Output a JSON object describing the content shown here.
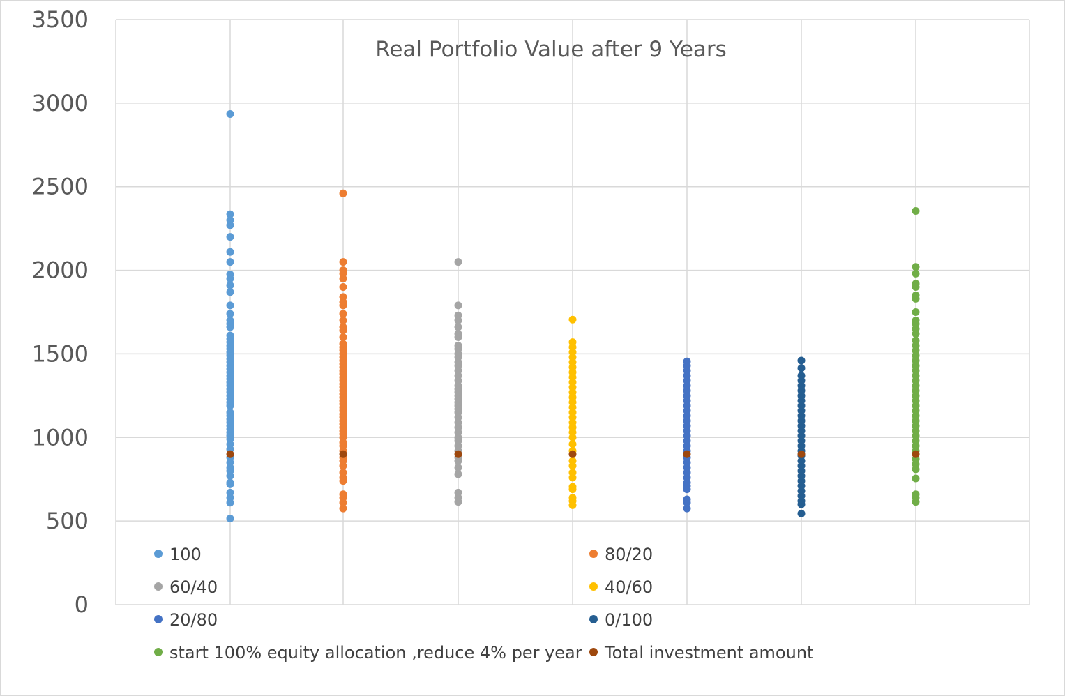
{
  "chart_data": {
    "type": "scatter",
    "title": "Real Portfolio Value after 9 Years",
    "xlabel": "",
    "ylabel": "",
    "ylim": [
      0,
      3500
    ],
    "y_ticks": [
      "0",
      "500",
      "1000",
      "1500",
      "2000",
      "2500",
      "3000",
      "3500"
    ],
    "grid": true,
    "legend_position": "bottom",
    "series": [
      {
        "name": "100",
        "color": "#5B9BD5",
        "x": 1,
        "values": [
          515,
          610,
          640,
          670,
          720,
          730,
          770,
          800,
          820,
          850,
          880,
          930,
          960,
          990,
          1010,
          1030,
          1050,
          1070,
          1090,
          1110,
          1130,
          1150,
          1190,
          1210,
          1230,
          1250,
          1270,
          1290,
          1310,
          1330,
          1350,
          1370,
          1390,
          1410,
          1430,
          1450,
          1470,
          1490,
          1510,
          1530,
          1550,
          1570,
          1590,
          1610,
          1660,
          1680,
          1700,
          1740,
          1790,
          1870,
          1910,
          1950,
          1975,
          2050,
          2110,
          2200,
          2270,
          2300,
          2335,
          2935
        ]
      },
      {
        "name": "80/20",
        "color": "#ED7D31",
        "x": 2,
        "values": [
          575,
          610,
          640,
          660,
          740,
          760,
          790,
          830,
          860,
          880,
          920,
          950,
          970,
          1000,
          1020,
          1040,
          1060,
          1080,
          1100,
          1120,
          1140,
          1160,
          1180,
          1200,
          1220,
          1240,
          1260,
          1280,
          1300,
          1320,
          1340,
          1360,
          1380,
          1400,
          1420,
          1440,
          1460,
          1480,
          1500,
          1520,
          1540,
          1560,
          1600,
          1640,
          1660,
          1700,
          1740,
          1790,
          1810,
          1840,
          1900,
          1950,
          1980,
          2000,
          2050,
          2460
        ]
      },
      {
        "name": "60/40",
        "color": "#A5A5A5",
        "x": 3,
        "values": [
          615,
          640,
          670,
          780,
          820,
          860,
          880,
          920,
          950,
          980,
          1000,
          1030,
          1060,
          1090,
          1120,
          1150,
          1170,
          1190,
          1210,
          1230,
          1250,
          1270,
          1290,
          1310,
          1340,
          1370,
          1400,
          1430,
          1450,
          1480,
          1500,
          1530,
          1550,
          1600,
          1620,
          1660,
          1700,
          1730,
          1790,
          2050
        ]
      },
      {
        "name": "40/60",
        "color": "#FFC000",
        "x": 4,
        "values": [
          595,
          620,
          640,
          690,
          705,
          760,
          790,
          830,
          860,
          920,
          960,
          1000,
          1030,
          1060,
          1090,
          1120,
          1150,
          1180,
          1210,
          1240,
          1270,
          1300,
          1330,
          1360,
          1390,
          1420,
          1450,
          1480,
          1510,
          1540,
          1570,
          1705
        ]
      },
      {
        "name": "20/80",
        "color": "#4472C4",
        "x": 5,
        "values": [
          575,
          610,
          630,
          690,
          710,
          730,
          760,
          790,
          820,
          850,
          880,
          920,
          950,
          980,
          1010,
          1040,
          1070,
          1100,
          1130,
          1160,
          1190,
          1220,
          1250,
          1280,
          1310,
          1340,
          1370,
          1400,
          1430,
          1455
        ]
      },
      {
        "name": "0/100",
        "color": "#255E91",
        "x": 6,
        "values": [
          545,
          600,
          620,
          650,
          680,
          710,
          740,
          770,
          800,
          830,
          860,
          890,
          920,
          950,
          980,
          1010,
          1040,
          1070,
          1100,
          1130,
          1160,
          1190,
          1220,
          1250,
          1280,
          1310,
          1340,
          1370,
          1415,
          1460
        ]
      },
      {
        "name": "start 100% equity allocation ,reduce 4% per year",
        "color": "#70AD47",
        "x": 7,
        "values": [
          615,
          640,
          660,
          755,
          810,
          840,
          870,
          920,
          950,
          980,
          1010,
          1040,
          1070,
          1100,
          1130,
          1160,
          1190,
          1220,
          1250,
          1280,
          1310,
          1340,
          1370,
          1400,
          1430,
          1460,
          1490,
          1520,
          1550,
          1580,
          1620,
          1650,
          1680,
          1700,
          1750,
          1830,
          1850,
          1900,
          1920,
          1980,
          2020,
          2355
        ]
      },
      {
        "name": "Total investment amount",
        "color": "#9E480E",
        "x": [
          1,
          2,
          3,
          4,
          5,
          6,
          7
        ],
        "values": [
          900,
          900,
          900,
          900,
          900,
          900,
          900
        ]
      }
    ]
  }
}
